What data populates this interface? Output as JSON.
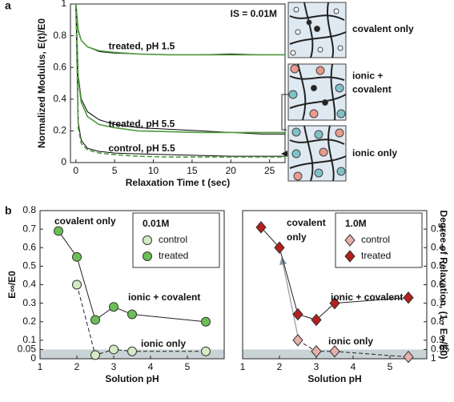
{
  "chart_data": [
    {
      "type": "line",
      "panel_label": "a",
      "title": "IS = 0.01M",
      "x_label": "Relaxation Time t (sec)",
      "y_label": "Normalized Modulus, E(t)/E0",
      "xlim": [
        -0.7,
        27
      ],
      "ylim": [
        0,
        1
      ],
      "xticks": [
        0,
        5,
        10,
        15,
        20,
        25
      ],
      "yticks": [
        0,
        0.2,
        0.4,
        0.6,
        0.8,
        1
      ],
      "x": [
        0,
        0.3,
        0.7,
        1.5,
        3,
        5,
        8,
        12,
        16,
        20,
        24,
        27
      ],
      "series": [
        {
          "name": "treated, pH 1.5",
          "color": "#000000",
          "fit_color": "#4e9a3c",
          "fit_dash": false,
          "values": [
            1,
            0.84,
            0.77,
            0.73,
            0.7,
            0.69,
            0.685,
            0.68,
            0.68,
            0.685,
            0.68,
            0.68
          ],
          "fit_values": [
            1,
            0.83,
            0.77,
            0.73,
            0.705,
            0.695,
            0.685,
            0.68,
            0.68,
            0.68,
            0.68,
            0.68
          ]
        },
        {
          "name": "treated, pH 5.5",
          "color": "#000000",
          "fit_color": "#4e9a3c",
          "fit_dash": false,
          "values": [
            1,
            0.55,
            0.4,
            0.32,
            0.27,
            0.24,
            0.22,
            0.21,
            0.2,
            0.19,
            0.18,
            0.18
          ],
          "fit_values": [
            1,
            0.52,
            0.38,
            0.29,
            0.24,
            0.22,
            0.2,
            0.195,
            0.19,
            0.19,
            0.19,
            0.19
          ]
        },
        {
          "name": "control, pH 5.5",
          "color": "#000000",
          "fit_color": "#4e9a3c",
          "fit_dash": true,
          "values": [
            1,
            0.25,
            0.14,
            0.09,
            0.07,
            0.06,
            0.055,
            0.05,
            0.045,
            0.04,
            0.04,
            0.04
          ],
          "fit_values": [
            1,
            0.22,
            0.12,
            0.08,
            0.06,
            0.05,
            0.04,
            0.035,
            0.035,
            0.035,
            0.035,
            0.035
          ]
        }
      ]
    },
    {
      "type": "scatter",
      "panel_label": "b",
      "x_label": "Solution pH",
      "y_label": "E∞/E0",
      "xlim": [
        1,
        6
      ],
      "ylim": [
        0,
        0.8
      ],
      "xticks": [
        1,
        2,
        3,
        4,
        5
      ],
      "yticks": [
        0,
        0.05,
        0.1,
        0.2,
        0.3,
        0.4,
        0.5,
        0.6,
        0.7,
        0.8
      ],
      "shaded_band": [
        0,
        0.05
      ],
      "legend_title": "0.01M",
      "legend": "upper right",
      "annotations": [
        [
          "covalent only"
        ],
        [
          "ionic + covalent"
        ],
        [
          "ionic only"
        ]
      ],
      "series": [
        {
          "name": "control",
          "marker": "circle",
          "color": "#d4ebc4",
          "line_dash": true,
          "x": [
            2,
            2.5,
            3,
            3.5,
            5.5
          ],
          "values": [
            0.4,
            0.02,
            0.05,
            0.04,
            0.04
          ]
        },
        {
          "name": "treated",
          "marker": "circle",
          "color": "#6cbf55",
          "line_dash": false,
          "x": [
            1.5,
            2,
            2.5,
            3,
            3.5,
            5.5
          ],
          "values": [
            0.69,
            0.55,
            0.21,
            0.28,
            0.24,
            0.2
          ]
        }
      ]
    },
    {
      "type": "scatter",
      "x_label": "Solution pH",
      "y2_label": "Degree of Relaxation, (1 - E∞/E0)",
      "xlim": [
        1,
        6
      ],
      "y2lim": [
        1,
        0.2
      ],
      "xticks": [
        1,
        2,
        3,
        4,
        5
      ],
      "y2ticks": [
        0.3,
        0.4,
        0.5,
        0.6,
        0.7,
        0.8,
        0.9,
        0.95,
        1
      ],
      "shaded_band": [
        0.95,
        1
      ],
      "legend_title": "1.0M",
      "legend": "upper right",
      "annotations": [
        [
          "covalent",
          "only"
        ],
        [
          "ionic + covalent"
        ],
        [
          "ionic only"
        ]
      ],
      "series": [
        {
          "name": "control",
          "marker": "diamond",
          "color": "#e6b1ac",
          "line_dash": true,
          "axis": "y2",
          "x": [
            2.5,
            3,
            3.5,
            5.5
          ],
          "values": [
            0.9,
            0.96,
            0.96,
            0.99
          ]
        },
        {
          "name": "treated",
          "marker": "diamond",
          "color": "#b3201c",
          "line_dash": false,
          "axis": "y2",
          "x": [
            1.5,
            2,
            2.5,
            3,
            3.5,
            5.5
          ],
          "values": [
            0.29,
            0.4,
            0.76,
            0.79,
            0.7,
            0.67
          ]
        }
      ]
    }
  ],
  "schematic_labels": [
    [
      "covalent only"
    ],
    [
      "ionic +",
      "covalent"
    ],
    [
      "ionic only"
    ]
  ]
}
